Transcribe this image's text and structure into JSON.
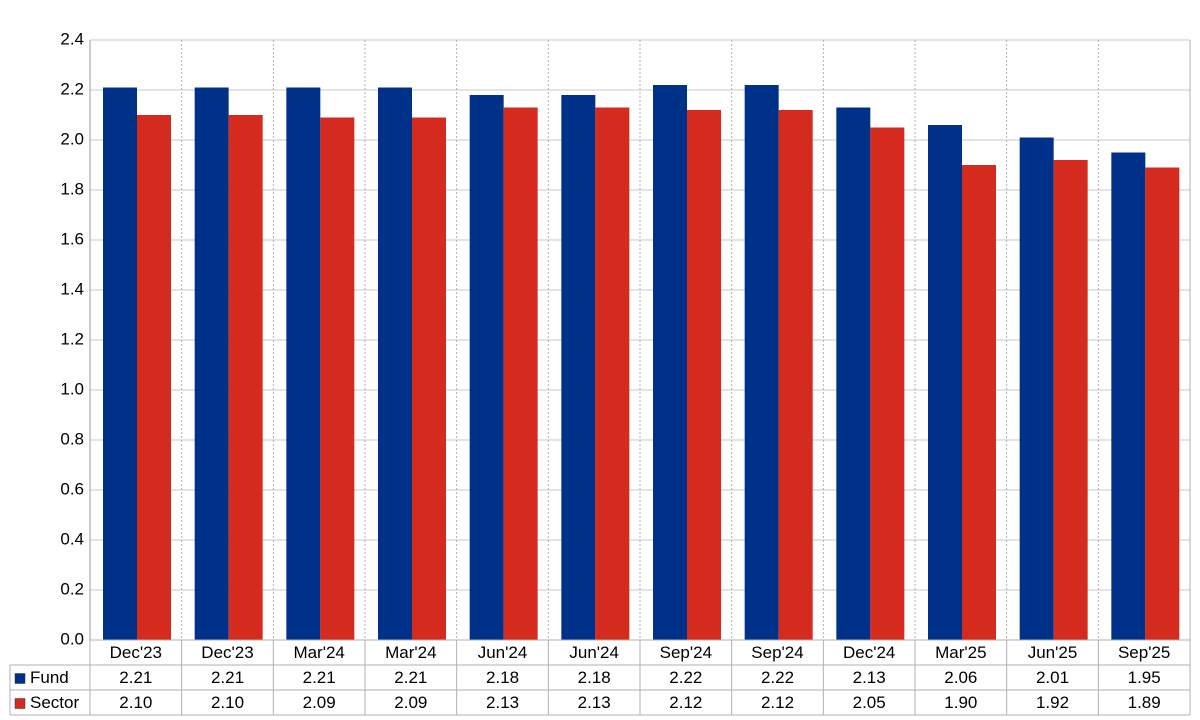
{
  "chart_data": {
    "type": "bar",
    "categories": [
      "Dec'23",
      "Dec'23",
      "Mar'24",
      "Mar'24",
      "Jun'24",
      "Jun'24",
      "Sep'24",
      "Sep'24",
      "Dec'24",
      "Mar'25",
      "Jun'25",
      "Sep'25"
    ],
    "series": [
      {
        "name": "Fund",
        "color": "#003189",
        "values": [
          2.21,
          2.21,
          2.21,
          2.21,
          2.18,
          2.18,
          2.22,
          2.22,
          2.13,
          2.06,
          2.01,
          1.95
        ],
        "value_labels": [
          "2.21",
          "2.21",
          "2.21",
          "2.21",
          "2.18",
          "2.18",
          "2.22",
          "2.22",
          "2.13",
          "2.06",
          "2.01",
          "1.95"
        ]
      },
      {
        "name": "Sector",
        "color": "#d52b1e",
        "values": [
          2.1,
          2.1,
          2.09,
          2.09,
          2.13,
          2.13,
          2.12,
          2.12,
          2.05,
          1.9,
          1.92,
          1.89
        ],
        "value_labels": [
          "2.10",
          "2.10",
          "2.09",
          "2.09",
          "2.13",
          "2.13",
          "2.12",
          "2.12",
          "2.05",
          "1.90",
          "1.92",
          "1.89"
        ]
      }
    ],
    "ylim": [
      0,
      2.4
    ],
    "yticks": [
      {
        "value": 0,
        "label": "0.0"
      },
      0.2,
      0.4,
      0.6,
      0.8,
      {
        "value": 1,
        "label": "1.0"
      },
      1.2,
      1.4,
      1.6,
      1.8,
      {
        "value": 2,
        "label": "2.0"
      },
      2.2,
      2.4
    ],
    "grid": true
  }
}
